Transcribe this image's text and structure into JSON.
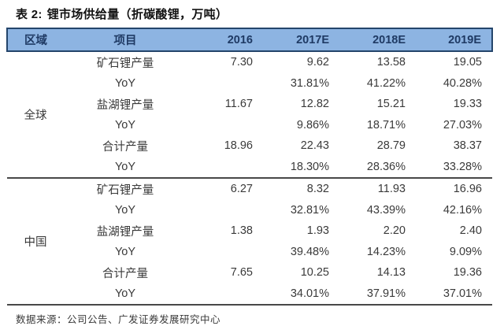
{
  "title": {
    "label": "表 2:",
    "text": "锂市场供给量（折碳酸锂，万吨）"
  },
  "table": {
    "headers": {
      "region": "区域",
      "item": "项目",
      "years": [
        "2016",
        "2017E",
        "2018E",
        "2019E"
      ]
    },
    "sections": [
      {
        "region": "全球",
        "rows": [
          {
            "item": "矿石锂产量",
            "values": [
              "7.30",
              "9.62",
              "13.58",
              "19.05"
            ]
          },
          {
            "item": "YoY",
            "values": [
              "",
              "31.81%",
              "41.22%",
              "40.28%"
            ]
          },
          {
            "item": "盐湖锂产量",
            "values": [
              "11.67",
              "12.82",
              "15.21",
              "19.33"
            ]
          },
          {
            "item": "YoY",
            "values": [
              "",
              "9.86%",
              "18.71%",
              "27.03%"
            ]
          },
          {
            "item": "合计产量",
            "values": [
              "18.96",
              "22.43",
              "28.79",
              "38.37"
            ]
          },
          {
            "item": "YoY",
            "values": [
              "",
              "18.30%",
              "28.36%",
              "33.28%"
            ]
          }
        ]
      },
      {
        "region": "中国",
        "rows": [
          {
            "item": "矿石锂产量",
            "values": [
              "6.27",
              "8.32",
              "11.93",
              "16.96"
            ]
          },
          {
            "item": "YoY",
            "values": [
              "",
              "32.81%",
              "43.39%",
              "42.16%"
            ]
          },
          {
            "item": "盐湖锂产量",
            "values": [
              "1.38",
              "1.93",
              "2.20",
              "2.40"
            ]
          },
          {
            "item": "YoY",
            "values": [
              "",
              "39.48%",
              "14.23%",
              "9.09%"
            ]
          },
          {
            "item": "合计产量",
            "values": [
              "7.65",
              "10.25",
              "14.13",
              "19.36"
            ]
          },
          {
            "item": "YoY",
            "values": [
              "",
              "34.01%",
              "37.91%",
              "37.01%"
            ]
          }
        ]
      }
    ]
  },
  "footer": {
    "source": "数据来源：公司公告、广发证券发展研究中心"
  },
  "colors": {
    "header_bg": "#8DB4E2",
    "header_text": "#1F3A64",
    "header_border": "#24456B",
    "divider": "#484848",
    "body_text": "#3A3A3A",
    "title_text": "#111111"
  }
}
